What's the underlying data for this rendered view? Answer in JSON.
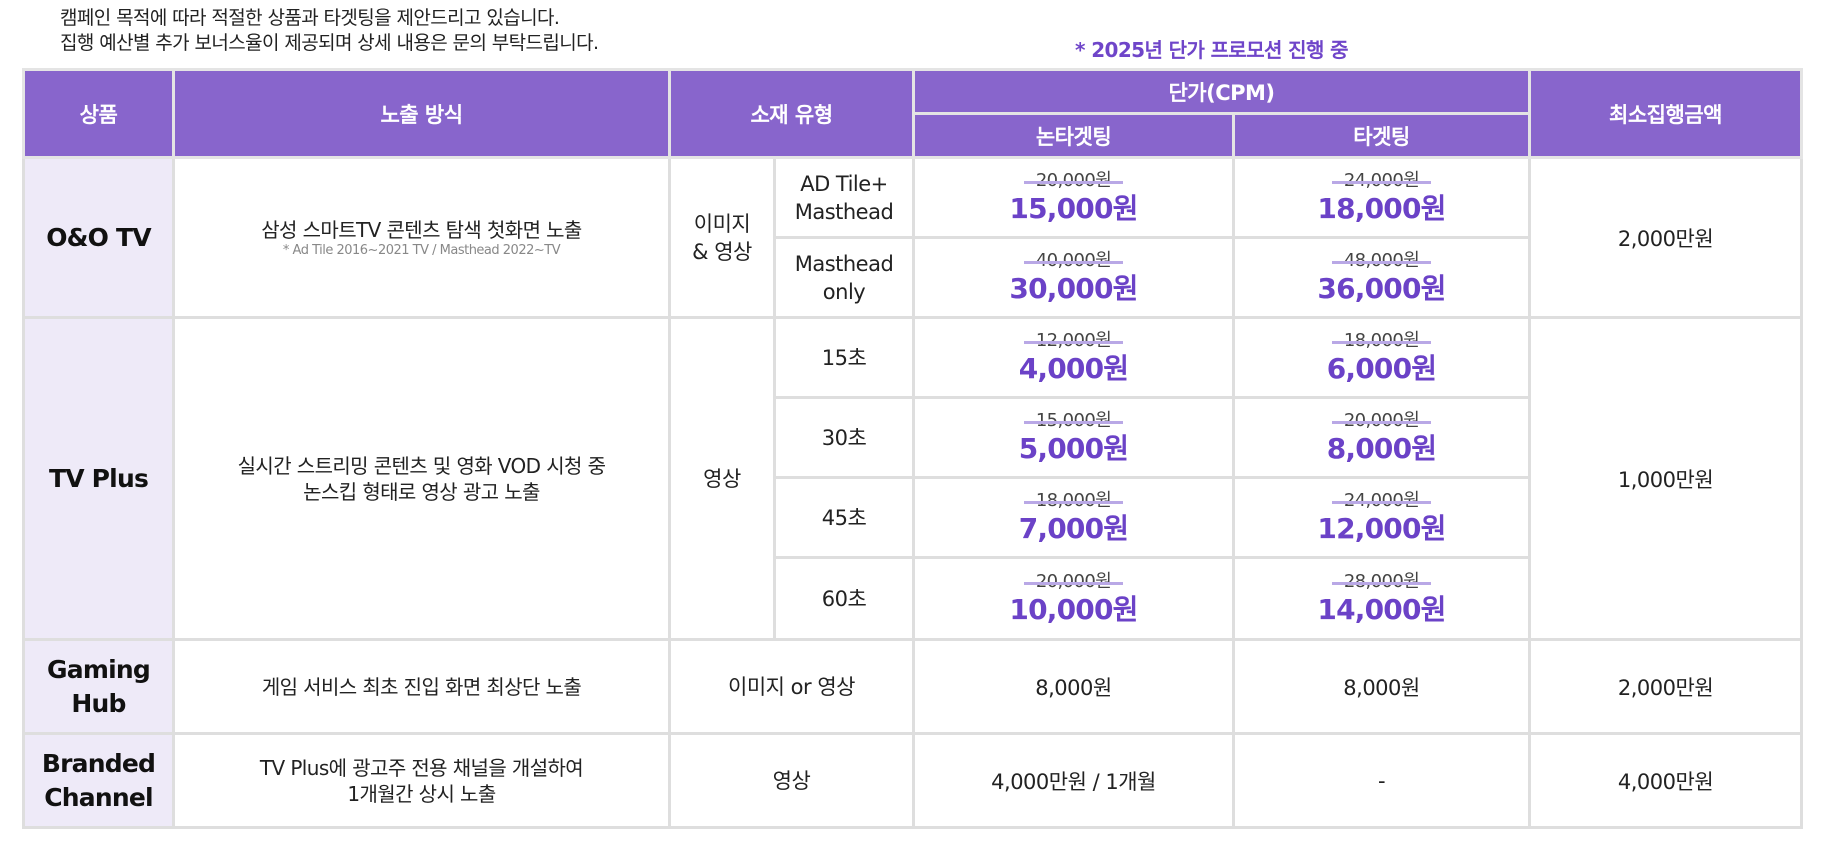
{
  "intro": {
    "line1": "캠페인 목적에 따라 적절한 상품과 타겟팅을 제안드리고 있습니다.",
    "line2": "집행 예산별 추가 보너스율이 제공되며 상세 내용은 문의 부탁드립니다."
  },
  "promo_note": "* 2025년 단가 프로모션 진행 중",
  "headers": {
    "product": "상품",
    "exposure": "노출 방식",
    "creative": "소재 유형",
    "price": "단가(CPM)",
    "non_targeting": "논타겟팅",
    "targeting": "타겟팅",
    "minimum": "최소집행금액"
  },
  "rows": {
    "oo_tv": {
      "product": "O&O TV",
      "desc": "삼성 스마트TV 콘텐츠 탐색 첫화면 노출",
      "note": "* Ad Tile 2016~2021 TV / Masthead 2022~TV",
      "creative": "이미지\n& 영상",
      "minimum": "2,000만원",
      "sub": [
        {
          "type": "AD Tile+\nMasthead",
          "non_old": "20,000원",
          "non_new": "15,000원",
          "tgt_old": "24,000원",
          "tgt_new": "18,000원"
        },
        {
          "type": "Masthead\nonly",
          "non_old": "40,000원",
          "non_new": "30,000원",
          "tgt_old": "48,000원",
          "tgt_new": "36,000원"
        }
      ]
    },
    "tv_plus": {
      "product": "TV Plus",
      "desc": "실시간 스트리밍 콘텐츠 및 영화 VOD 시청 중\n논스킵 형태로 영상 광고 노출",
      "creative": "영상",
      "minimum": "1,000만원",
      "sub": [
        {
          "type": "15초",
          "non_old": "12,000원",
          "non_new": "4,000원",
          "tgt_old": "18,000원",
          "tgt_new": "6,000원"
        },
        {
          "type": "30초",
          "non_old": "15,000원",
          "non_new": "5,000원",
          "tgt_old": "20,000원",
          "tgt_new": "8,000원"
        },
        {
          "type": "45초",
          "non_old": "18,000원",
          "non_new": "7,000원",
          "tgt_old": "24,000원",
          "tgt_new": "12,000원"
        },
        {
          "type": "60초",
          "non_old": "20,000원",
          "non_new": "10,000원",
          "tgt_old": "28,000원",
          "tgt_new": "14,000원"
        }
      ]
    },
    "gaming_hub": {
      "product": "Gaming\nHub",
      "desc": "게임 서비스 최초 진입 화면 최상단 노출",
      "creative": "이미지 or 영상",
      "non_targeting": "8,000원",
      "targeting": "8,000원",
      "minimum": "2,000만원"
    },
    "branded_channel": {
      "product": "Branded\nChannel",
      "desc": "TV Plus에 광고주 전용 채널을 개설하여\n1개월간 상시 노출",
      "creative": "영상",
      "non_targeting": "4,000만원 / 1개월",
      "targeting": "-",
      "minimum": "4,000만원"
    }
  },
  "colors": {
    "header_bg": "#8865cc",
    "accent_text": "#6b42c7",
    "product_bg": "#eeeaf8",
    "strike": "#b9a8e6"
  }
}
